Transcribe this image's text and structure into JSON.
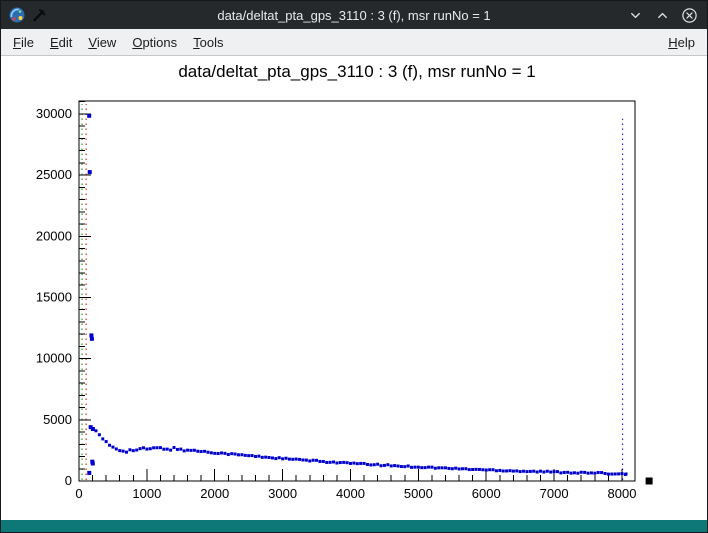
{
  "window": {
    "title": "data/deltat_pta_gps_3110 : 3 (f), msr runNo = 1"
  },
  "icons": {
    "app": "root-logo",
    "tool": "pickaxe",
    "minimize": "chevron-down",
    "maximize": "chevron-up",
    "close": "circle-x"
  },
  "menu": {
    "items": [
      {
        "label": "File"
      },
      {
        "label": "Edit"
      },
      {
        "label": "View"
      },
      {
        "label": "Options"
      },
      {
        "label": "Tools"
      }
    ],
    "right_items": [
      {
        "label": "Help"
      }
    ]
  },
  "colors": {
    "titlebar-bg": "#25292c",
    "titlebar-fg": "#e8eaec",
    "menubar-bg": "#eff0f1",
    "menubar-fg": "#1a1d1f",
    "canvas-bg": "#ffffff",
    "status-strip": "#0e7878",
    "marker": "#0000cd",
    "line-green": "#008f00",
    "line-red": "#d40000",
    "line-blue": "#0000cd",
    "axis": "#000000"
  },
  "chart_data": {
    "type": "scatter",
    "title": "data/deltat_pta_gps_3110 : 3 (f), msr runNo = 1",
    "xlabel": "",
    "ylabel": "",
    "xlim": [
      0,
      8192
    ],
    "ylim": [
      0,
      31060
    ],
    "x_ticks": [
      0,
      1000,
      2000,
      3000,
      4000,
      5000,
      6000,
      7000,
      8000
    ],
    "x_minor_step": 200,
    "y_ticks": [
      0,
      5000,
      10000,
      15000,
      20000,
      25000,
      30000
    ],
    "y_minor_step": 1000,
    "grid": false,
    "legend": null,
    "marker": {
      "shape": "square",
      "size": 3,
      "color_key": "marker"
    },
    "prompt_points": [
      [
        150,
        29850
      ],
      [
        158,
        25250
      ],
      [
        183,
        11900
      ],
      [
        190,
        11620
      ],
      [
        172,
        4400
      ],
      [
        205,
        4250
      ],
      [
        196,
        1580
      ],
      [
        203,
        1430
      ],
      [
        151,
        660
      ]
    ],
    "band": {
      "marker_step": 50,
      "jitter": 60,
      "jitter_early": 130,
      "early_x_max": 1600,
      "anchors": [
        [
          250,
          4150
        ],
        [
          300,
          3700
        ],
        [
          350,
          3380
        ],
        [
          400,
          3120
        ],
        [
          450,
          2920
        ],
        [
          500,
          2760
        ],
        [
          550,
          2650
        ],
        [
          600,
          2560
        ],
        [
          650,
          2510
        ],
        [
          700,
          2480
        ],
        [
          750,
          2490
        ],
        [
          800,
          2520
        ],
        [
          850,
          2550
        ],
        [
          900,
          2580
        ],
        [
          950,
          2600
        ],
        [
          1000,
          2620
        ],
        [
          1100,
          2650
        ],
        [
          1200,
          2660
        ],
        [
          1300,
          2650
        ],
        [
          1400,
          2620
        ],
        [
          1500,
          2580
        ],
        [
          1600,
          2530
        ],
        [
          1700,
          2480
        ],
        [
          1800,
          2430
        ],
        [
          1900,
          2370
        ],
        [
          2000,
          2320
        ],
        [
          2100,
          2270
        ],
        [
          2200,
          2220
        ],
        [
          2300,
          2170
        ],
        [
          2400,
          2120
        ],
        [
          2500,
          2070
        ],
        [
          2600,
          2020
        ],
        [
          2700,
          1970
        ],
        [
          2800,
          1930
        ],
        [
          2900,
          1880
        ],
        [
          3000,
          1840
        ],
        [
          3100,
          1790
        ],
        [
          3200,
          1750
        ],
        [
          3300,
          1710
        ],
        [
          3400,
          1670
        ],
        [
          3500,
          1630
        ],
        [
          3600,
          1590
        ],
        [
          3700,
          1550
        ],
        [
          3800,
          1520
        ],
        [
          3900,
          1480
        ],
        [
          4000,
          1450
        ],
        [
          4100,
          1410
        ],
        [
          4200,
          1380
        ],
        [
          4300,
          1350
        ],
        [
          4400,
          1320
        ],
        [
          4500,
          1290
        ],
        [
          4600,
          1260
        ],
        [
          4700,
          1230
        ],
        [
          4800,
          1200
        ],
        [
          4900,
          1170
        ],
        [
          5000,
          1150
        ],
        [
          5100,
          1120
        ],
        [
          5200,
          1100
        ],
        [
          5300,
          1070
        ],
        [
          5400,
          1050
        ],
        [
          5500,
          1020
        ],
        [
          5600,
          1000
        ],
        [
          5700,
          980
        ],
        [
          5800,
          955
        ],
        [
          5900,
          935
        ],
        [
          6000,
          915
        ],
        [
          6100,
          895
        ],
        [
          6200,
          875
        ],
        [
          6300,
          855
        ],
        [
          6400,
          835
        ],
        [
          6500,
          815
        ],
        [
          6600,
          795
        ],
        [
          6700,
          780
        ],
        [
          6800,
          765
        ],
        [
          6900,
          750
        ],
        [
          7000,
          735
        ],
        [
          7100,
          720
        ],
        [
          7200,
          705
        ],
        [
          7300,
          690
        ],
        [
          7400,
          675
        ],
        [
          7500,
          660
        ],
        [
          7600,
          645
        ],
        [
          7700,
          630
        ],
        [
          7800,
          615
        ],
        [
          7900,
          600
        ],
        [
          8000,
          585
        ],
        [
          8060,
          575
        ]
      ]
    },
    "vlines": [
      {
        "x": 45,
        "color_key": "line-green",
        "style": "dotted",
        "y_top": 30800
      },
      {
        "x": 105,
        "color_key": "line-red",
        "style": "dotted",
        "y_top": 30800
      },
      {
        "x": 8010,
        "color_key": "line-blue",
        "style": "dotted",
        "y_top": 29600
      }
    ],
    "end_mark": {
      "x": 8400,
      "y": 0,
      "size": 7
    }
  }
}
